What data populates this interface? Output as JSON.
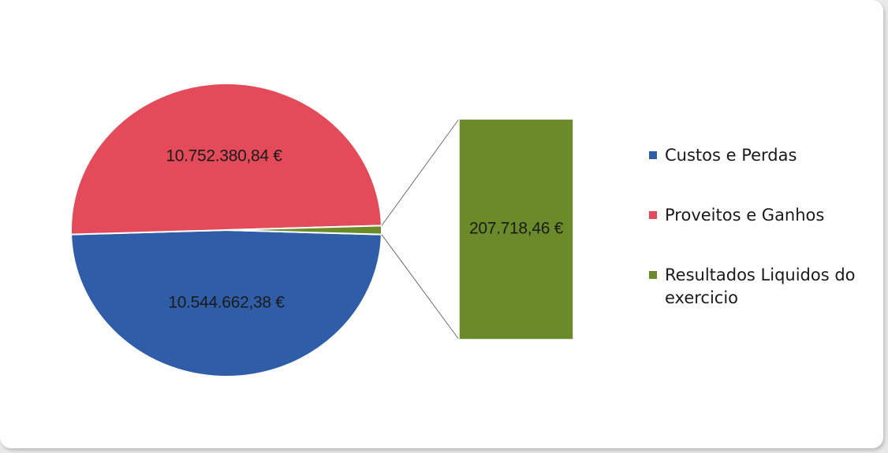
{
  "chart_data": {
    "type": "pie",
    "subtype": "pie-of-pie (bar of pie)",
    "slices": [
      {
        "name": "Custos e Perdas",
        "value": 10544662.38,
        "label": "10.544.662,38 €",
        "color": "#2f5da8"
      },
      {
        "name": "Proveitos e Ganhos",
        "value": 10752380.84,
        "label": "10.752.380,84 €",
        "color": "#e34b5a"
      },
      {
        "name": "Resultados Liquidos do exercicio",
        "value": 207718.46,
        "label": "207.718,46 €",
        "color": "#6b8a2a"
      }
    ],
    "breakout_slice": "Resultados Liquidos do exercicio",
    "legend_position": "right"
  },
  "legend": {
    "items": [
      {
        "label": "Custos e Perdas",
        "color": "#2f5da8"
      },
      {
        "label": "Proveitos e Ganhos",
        "color": "#e34b5a"
      },
      {
        "label": "Resultados Liquidos do exercicio",
        "color": "#6b8a2a"
      }
    ]
  }
}
